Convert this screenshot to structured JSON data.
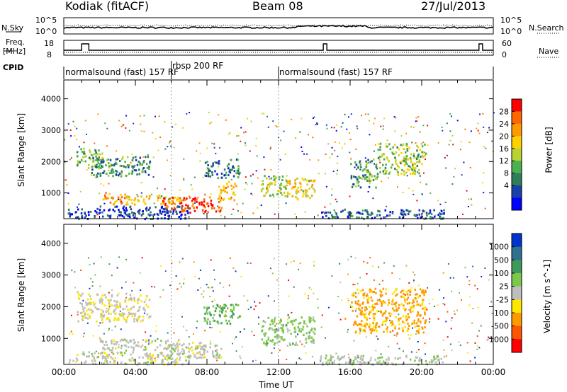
{
  "header": {
    "station": "Kodiak (fitACF)",
    "beam": "Beam 08",
    "date": "27/Jul/2013"
  },
  "top_panels": {
    "nsky_label": "N.Sky",
    "nsky_ticks": [
      "10^5",
      "10^0"
    ],
    "nsearch_label": "N.Search",
    "nsearch_ticks": [
      "10^5",
      "10^0"
    ],
    "freq_label_1": "Freq.",
    "freq_label_2": "[MHz]",
    "freq_ticks": [
      "18",
      "8"
    ],
    "nave_label": "Nave",
    "nave_ticks": [
      "60",
      "0"
    ],
    "cpid_label": "CPID",
    "cpid_segments": [
      "normalsound (fast) 157 RF",
      "rbsp 200 RF",
      "normalsound (fast) 157 RF"
    ]
  },
  "chart_data": [
    {
      "type": "heatmap",
      "name": "power",
      "ylabel": "Slant Range [km]",
      "yticks": [
        1000,
        2000,
        3000,
        4000
      ],
      "ylim": [
        180,
        4600
      ],
      "colorbar_label": "Power [dB]",
      "colorbar_ticks": [
        "28",
        "24",
        "20",
        "16",
        "12",
        "8",
        "4"
      ],
      "colors": [
        "#0000ff",
        "#1a3fa8",
        "#2e7d5b",
        "#4caf50",
        "#b8d233",
        "#ffd000",
        "#ff9900",
        "#ff6600",
        "#ff0000"
      ],
      "regions": [
        {
          "t0": 0.7,
          "t1": 2.2,
          "r0": 1800,
          "r1": 2450,
          "v": 12
        },
        {
          "t0": 1.5,
          "t1": 4.8,
          "r0": 1550,
          "r1": 2200,
          "v": 10
        },
        {
          "t0": 2.0,
          "t1": 3.5,
          "r0": 650,
          "r1": 1000,
          "v": 22
        },
        {
          "t0": 3.5,
          "t1": 6.5,
          "r0": 650,
          "r1": 950,
          "v": 18
        },
        {
          "t0": 5.5,
          "t1": 8.8,
          "r0": 400,
          "r1": 900,
          "v": 27
        },
        {
          "t0": 7.8,
          "t1": 9.8,
          "r0": 1500,
          "r1": 2100,
          "v": 8
        },
        {
          "t0": 8.6,
          "t1": 9.6,
          "r0": 800,
          "r1": 1400,
          "v": 20
        },
        {
          "t0": 11.0,
          "t1": 12.5,
          "r0": 900,
          "r1": 1600,
          "v": 15
        },
        {
          "t0": 12.5,
          "t1": 14.0,
          "r0": 800,
          "r1": 1500,
          "v": 18
        },
        {
          "t0": 14.3,
          "t1": 21.3,
          "r0": 200,
          "r1": 500,
          "v": 6
        },
        {
          "t0": 16.0,
          "t1": 17.5,
          "r0": 1200,
          "r1": 2100,
          "v": 10
        },
        {
          "t0": 17.5,
          "t1": 20.2,
          "r0": 1600,
          "r1": 2600,
          "v": 14
        },
        {
          "t0": 0.2,
          "t1": 7.0,
          "r0": 200,
          "r1": 600,
          "v": 5
        }
      ]
    },
    {
      "type": "heatmap",
      "name": "velocity",
      "ylabel": "Slant Range [km]",
      "yticks": [
        1000,
        2000,
        3000,
        4000
      ],
      "ylim": [
        180,
        4600
      ],
      "colorbar_label": "Velocity [m s^-1]",
      "colorbar_ticks": [
        "1000",
        "500",
        "100",
        "25",
        "-25",
        "-100",
        "-500",
        "-1000"
      ],
      "colors": [
        "#0033cc",
        "#2f6f8f",
        "#3d9a5a",
        "#7cc84a",
        "#bebebe",
        "#ffe600",
        "#ff9900",
        "#ff5500",
        "#ff0000"
      ],
      "regions": [
        {
          "t0": 0.7,
          "t1": 4.8,
          "r0": 1550,
          "r1": 2450,
          "v": -80
        },
        {
          "t0": 2.0,
          "t1": 6.5,
          "r0": 650,
          "r1": 1000,
          "v": 0
        },
        {
          "t0": 5.5,
          "t1": 8.8,
          "r0": 400,
          "r1": 900,
          "v": 10
        },
        {
          "t0": 7.8,
          "t1": 9.8,
          "r0": 1500,
          "r1": 2100,
          "v": 300
        },
        {
          "t0": 11.0,
          "t1": 14.0,
          "r0": 800,
          "r1": 1700,
          "v": 200
        },
        {
          "t0": 14.3,
          "t1": 21.3,
          "r0": 200,
          "r1": 500,
          "v": 60
        },
        {
          "t0": 16.0,
          "t1": 20.2,
          "r0": 1200,
          "r1": 2600,
          "v": -400
        },
        {
          "t0": 0.2,
          "t1": 7.0,
          "r0": 200,
          "r1": 600,
          "v": 0
        }
      ]
    }
  ],
  "x_axis": {
    "label": "Time UT",
    "ticks": [
      "00:00",
      "04:00",
      "08:00",
      "12:00",
      "16:00",
      "20:00",
      "00:00"
    ],
    "range_hours": [
      0,
      24
    ]
  }
}
